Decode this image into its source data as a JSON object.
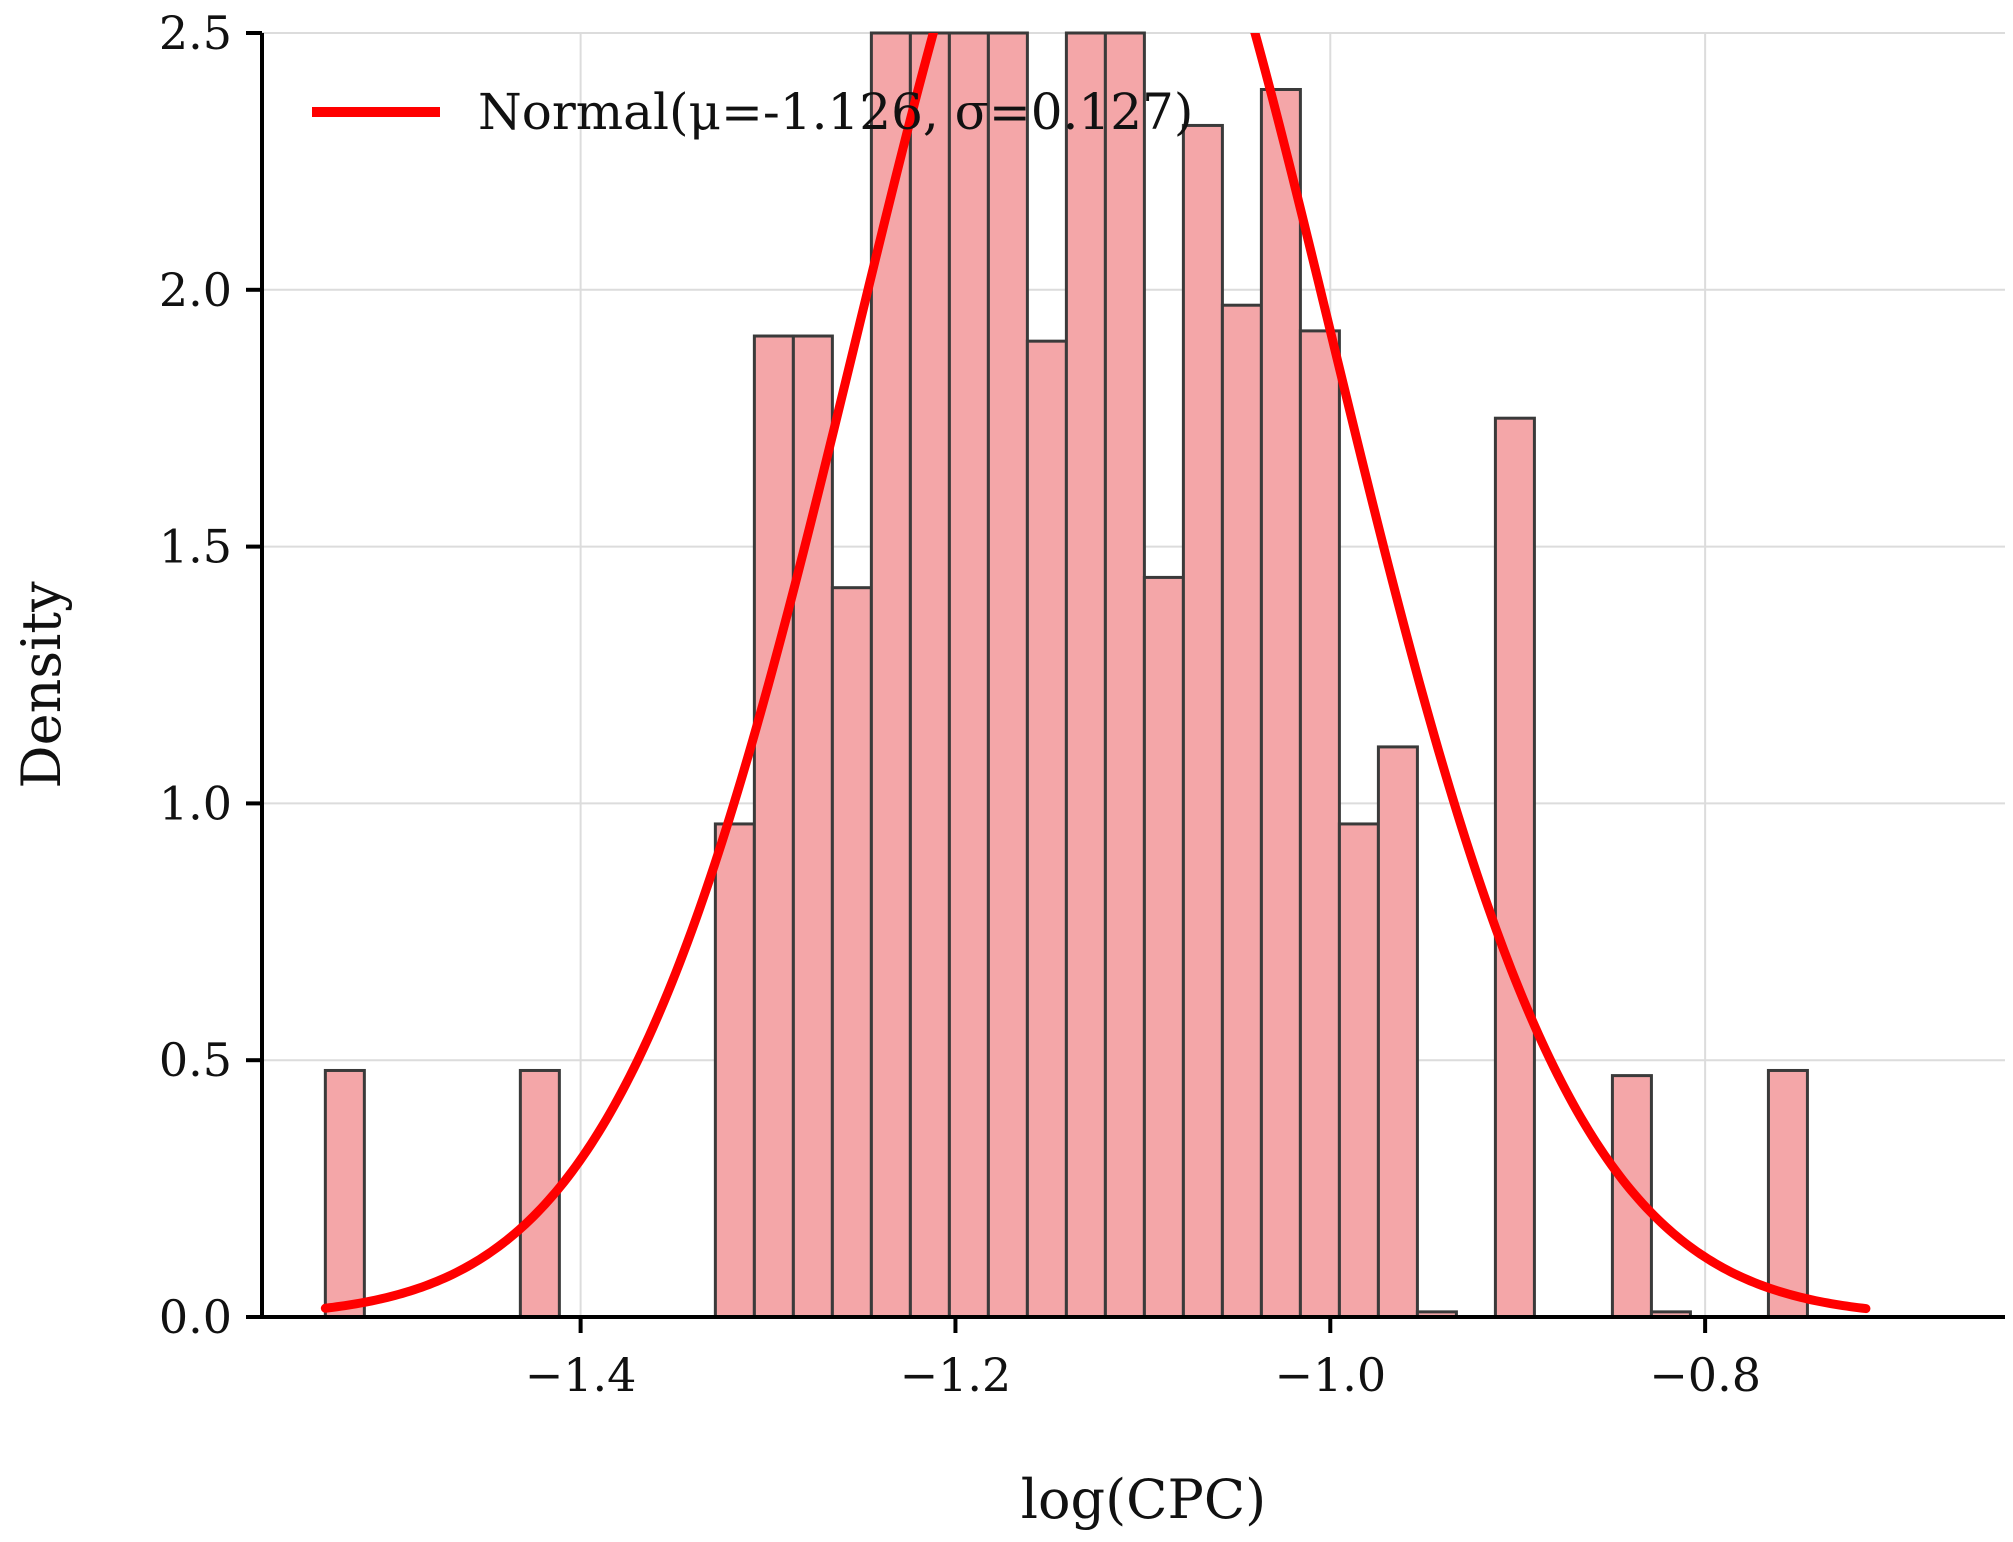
{
  "chart_data": {
    "type": "bar",
    "xlabel": "log(CPC)",
    "ylabel": "Density",
    "xlim": [
      -1.57,
      -0.64
    ],
    "ylim": [
      0,
      2.5
    ],
    "x_ticks": [
      -1.4,
      -1.2,
      -1.0,
      -0.8
    ],
    "x_tick_labels": [
      "−1.4",
      "−1.2",
      "−1.0",
      "−0.8"
    ],
    "y_ticks": [
      0.0,
      0.5,
      1.0,
      1.5,
      2.0,
      2.5
    ],
    "y_tick_labels": [
      "0.0",
      "0.5",
      "1.0",
      "1.5",
      "2.0",
      "2.5"
    ],
    "grid": true,
    "legend": {
      "placement": "top-left",
      "entries": [
        "Normal(μ=-1.126, σ=0.127)"
      ]
    },
    "colors": {
      "bar_fill": "#f4a6a8",
      "bar_edge": "#3a3a3a",
      "curve": "#ff0000"
    },
    "histogram": {
      "bin_start": -1.5362,
      "bin_width": 0.02081,
      "density": [
        0.48,
        0.0,
        0.0,
        0.0,
        0.0,
        0.48,
        0.0,
        0.0,
        0.0,
        0.0,
        0.96,
        1.91,
        1.91,
        1.42,
        2.5,
        2.5,
        2.5,
        2.5,
        1.9,
        2.5,
        2.5,
        1.44,
        2.32,
        1.97,
        2.39,
        1.92,
        0.96,
        1.11,
        0.01,
        0.0,
        1.75,
        0.0,
        0.0,
        0.47,
        0.01,
        0.0,
        0.0,
        0.48
      ]
    },
    "series": [
      {
        "name": "Normal(μ=-1.126, σ=0.127)",
        "type": "line",
        "mu": -1.126,
        "sigma": 0.127,
        "x_range": [
          -1.5362,
          -0.7142
        ]
      }
    ]
  }
}
